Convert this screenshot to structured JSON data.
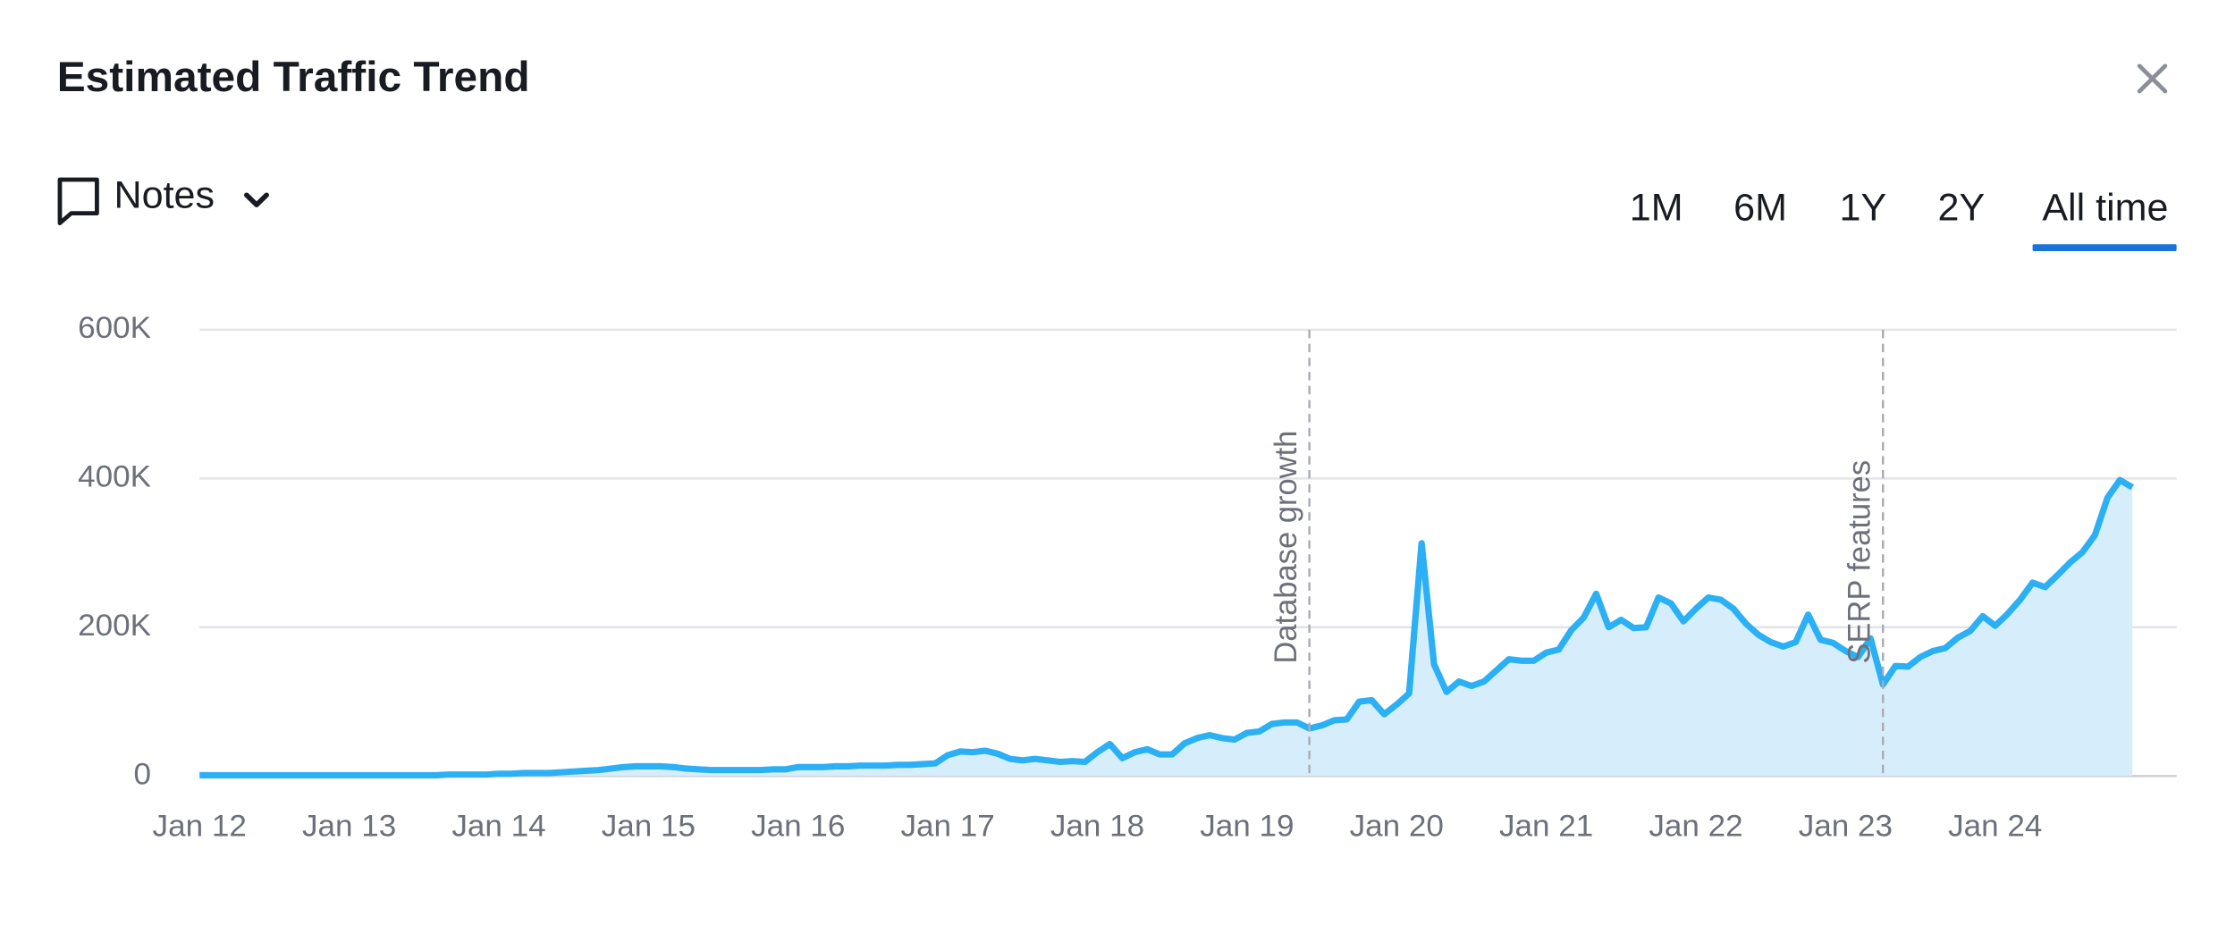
{
  "header": {
    "title": "Estimated Traffic Trend",
    "notes": "Notes",
    "ranges": [
      {
        "label": "1M",
        "active": false
      },
      {
        "label": "6M",
        "active": false
      },
      {
        "label": "1Y",
        "active": false
      },
      {
        "label": "2Y",
        "active": false
      },
      {
        "label": "All time",
        "active": true
      }
    ]
  },
  "chart_data": {
    "type": "area",
    "categories": [
      "Jan 12",
      null,
      null,
      null,
      null,
      null,
      null,
      null,
      null,
      null,
      null,
      null,
      "Jan 13",
      null,
      null,
      null,
      null,
      null,
      null,
      null,
      null,
      null,
      null,
      null,
      "Jan 14",
      null,
      null,
      null,
      null,
      null,
      null,
      null,
      null,
      null,
      null,
      null,
      "Jan 15",
      null,
      null,
      null,
      null,
      null,
      null,
      null,
      null,
      null,
      null,
      null,
      "Jan 16",
      null,
      null,
      null,
      null,
      null,
      null,
      null,
      null,
      null,
      null,
      null,
      "Jan 17",
      null,
      null,
      null,
      null,
      null,
      null,
      null,
      null,
      null,
      null,
      null,
      "Jan 18",
      null,
      null,
      null,
      null,
      null,
      null,
      null,
      null,
      null,
      null,
      null,
      "Jan 19",
      null,
      null,
      null,
      null,
      null,
      null,
      null,
      null,
      null,
      null,
      null,
      "Jan 20",
      null,
      null,
      null,
      null,
      null,
      null,
      null,
      null,
      null,
      null,
      null,
      "Jan 21",
      null,
      null,
      null,
      null,
      null,
      null,
      null,
      null,
      null,
      null,
      null,
      "Jan 22",
      null,
      null,
      null,
      null,
      null,
      null,
      null,
      null,
      null,
      null,
      null,
      "Jan 23",
      null,
      null,
      null,
      null,
      null,
      null,
      null,
      null,
      null,
      null,
      null,
      "Jan 24",
      null,
      null,
      null,
      null,
      null,
      null,
      null,
      null,
      null,
      null,
      null
    ],
    "series": [
      {
        "color": "#2bb0f5",
        "fill": "#d6eefb",
        "values": [
          1000,
          1000,
          1000,
          1000,
          1000,
          1000,
          1000,
          1000,
          1000,
          1000,
          1000,
          1000,
          1000,
          1000,
          1000,
          1000,
          1000,
          1000,
          1000,
          1000,
          2000,
          2000,
          2000,
          2000,
          3000,
          3000,
          4000,
          4000,
          4000,
          5000,
          6000,
          7000,
          8000,
          10000,
          12000,
          13000,
          13000,
          13000,
          12000,
          10000,
          9000,
          8000,
          8000,
          8000,
          8000,
          8000,
          9000,
          9000,
          12000,
          12000,
          12000,
          13000,
          13000,
          14000,
          14000,
          14000,
          15000,
          15000,
          16000,
          17000,
          28000,
          33000,
          32000,
          34000,
          30000,
          23000,
          21000,
          23000,
          21000,
          19000,
          20000,
          19000,
          32000,
          43000,
          24000,
          32000,
          36000,
          29000,
          29000,
          44000,
          51000,
          55000,
          51000,
          49000,
          58000,
          60000,
          70000,
          72000,
          72000,
          64000,
          68000,
          75000,
          76000,
          100000,
          102000,
          83000,
          96000,
          111000,
          313000,
          150000,
          113000,
          127000,
          121000,
          127000,
          142000,
          157000,
          155000,
          155000,
          166000,
          170000,
          196000,
          213000,
          245000,
          200000,
          210000,
          199000,
          200000,
          240000,
          232000,
          208000,
          225000,
          240000,
          237000,
          225000,
          205000,
          190000,
          180000,
          174000,
          180000,
          217000,
          183000,
          179000,
          168000,
          160000,
          185000,
          123000,
          148000,
          147000,
          160000,
          168000,
          172000,
          186000,
          195000,
          215000,
          202000,
          218000,
          237000,
          260000,
          254000,
          270000,
          287000,
          301000,
          324000,
          374000,
          398000,
          388000
        ]
      }
    ],
    "ylim": [
      0,
      600000
    ],
    "yticks": [
      0,
      {
        "value": 200000,
        "label": "200K"
      },
      {
        "value": 400000,
        "label": "400K"
      },
      {
        "value": 600000,
        "label": "600K"
      }
    ],
    "grid": true,
    "annotations": [
      {
        "label": "Database growth",
        "at": 89
      },
      {
        "label": "SERP features",
        "at": 135
      }
    ]
  }
}
